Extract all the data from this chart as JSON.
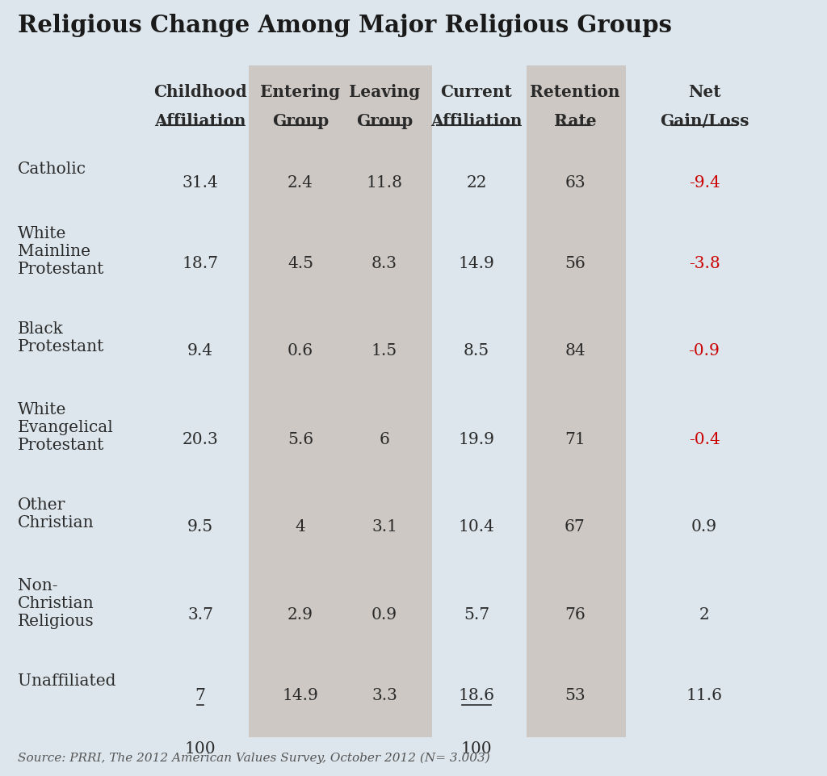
{
  "title": "Religious Change Among Major Religious Groups",
  "source": "Source: PRRI, The 2012 American Values Survey, October 2012 (N= 3.003)",
  "header_line1": [
    "Childhood",
    "Entering",
    "Leaving",
    "Current",
    "Retention",
    "Net"
  ],
  "header_line2": [
    "Affiliation",
    "Group",
    "Group",
    "Affiliation",
    "Rate",
    "Gain/Loss"
  ],
  "rows": [
    {
      "label_lines": [
        "Catholic"
      ],
      "values": [
        "31.4",
        "2.4",
        "11.8",
        "22",
        "63",
        "-9.4"
      ],
      "net_negative": true,
      "childhood_underline": false,
      "current_underline": false
    },
    {
      "label_lines": [
        "White",
        "Mainline",
        "Protestant"
      ],
      "values": [
        "18.7",
        "4.5",
        "8.3",
        "14.9",
        "56",
        "-3.8"
      ],
      "net_negative": true,
      "childhood_underline": false,
      "current_underline": false
    },
    {
      "label_lines": [
        "Black",
        "Protestant"
      ],
      "values": [
        "9.4",
        "0.6",
        "1.5",
        "8.5",
        "84",
        "-0.9"
      ],
      "net_negative": true,
      "childhood_underline": false,
      "current_underline": false
    },
    {
      "label_lines": [
        "White",
        "Evangelical",
        "Protestant"
      ],
      "values": [
        "20.3",
        "5.6",
        "6",
        "19.9",
        "71",
        "-0.4"
      ],
      "net_negative": true,
      "childhood_underline": false,
      "current_underline": false
    },
    {
      "label_lines": [
        "Other",
        "Christian"
      ],
      "values": [
        "9.5",
        "4",
        "3.1",
        "10.4",
        "67",
        "0.9"
      ],
      "net_negative": false,
      "childhood_underline": false,
      "current_underline": false
    },
    {
      "label_lines": [
        "Non-",
        "Christian",
        "Religious"
      ],
      "values": [
        "3.7",
        "2.9",
        "0.9",
        "5.7",
        "76",
        "2"
      ],
      "net_negative": false,
      "childhood_underline": false,
      "current_underline": false
    },
    {
      "label_lines": [
        "Unaffiliated"
      ],
      "values": [
        "7",
        "14.9",
        "3.3",
        "18.6",
        "53",
        "11.6"
      ],
      "net_negative": false,
      "childhood_underline": true,
      "current_underline": true
    }
  ],
  "total_row_childhood": "100",
  "total_row_current": "100",
  "bg_color": "#dce6ec",
  "shaded_col_color": "#cdc8c3",
  "title_color": "#1a1a1a",
  "header_color": "#2a2a2a",
  "label_color": "#2a2a2a",
  "value_color": "#2a2a2a",
  "negative_color": "#cc0000",
  "source_color": "#555555",
  "fig_width": 10.24,
  "fig_height": 9.62,
  "dpi": 100
}
